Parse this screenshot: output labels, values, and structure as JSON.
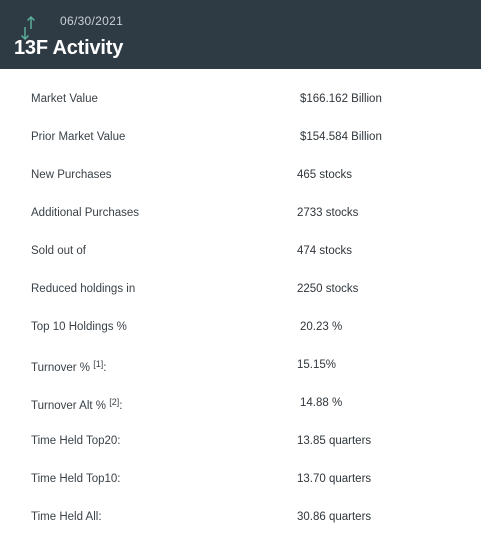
{
  "header": {
    "date": "06/30/2021",
    "title": "13F Activity",
    "icon": "sort-arrows-icon",
    "icon_color": "#5fb3a0",
    "background": "#2f3b44"
  },
  "rows": [
    {
      "label": "Market Value",
      "value": "$166.162 Billion"
    },
    {
      "label": "Prior Market Value",
      "value": "$154.584 Billion"
    },
    {
      "label": "New Purchases",
      "value": "465 stocks"
    },
    {
      "label": "Additional Purchases",
      "value": "2733 stocks"
    },
    {
      "label": "Sold out of",
      "value": "474 stocks"
    },
    {
      "label": "Reduced holdings in",
      "value": "2250 stocks"
    },
    {
      "label": "Top 10 Holdings %",
      "value": "20.23 %"
    },
    {
      "label": "Turnover %",
      "footnote": "[1]",
      "suffix": ":",
      "value": "15.15%"
    },
    {
      "label": "Turnover Alt %",
      "footnote": "[2]",
      "suffix": ":",
      "value": "14.88 %"
    },
    {
      "label": "Time Held Top20:",
      "value": "13.85 quarters"
    },
    {
      "label": "Time Held Top10:",
      "value": "13.70 quarters"
    },
    {
      "label": "Time Held All:",
      "value": "30.86 quarters"
    }
  ]
}
